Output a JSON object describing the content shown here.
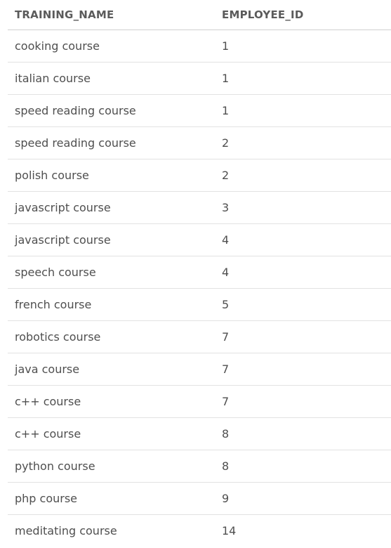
{
  "table": {
    "columns": [
      "TRAINING_NAME",
      "EMPLOYEE_ID"
    ],
    "rows": [
      [
        "cooking course",
        "1"
      ],
      [
        "italian course",
        "1"
      ],
      [
        "speed reading course",
        "1"
      ],
      [
        "speed reading course",
        "2"
      ],
      [
        "polish course",
        "2"
      ],
      [
        "javascript course",
        "3"
      ],
      [
        "javascript course",
        "4"
      ],
      [
        "speech course",
        "4"
      ],
      [
        "french course",
        "5"
      ],
      [
        "robotics course",
        "7"
      ],
      [
        "java course",
        "7"
      ],
      [
        "c++ course",
        "7"
      ],
      [
        "c++ course",
        "8"
      ],
      [
        "python course",
        "8"
      ],
      [
        "php course",
        "9"
      ],
      [
        "meditating course",
        "14"
      ]
    ]
  }
}
